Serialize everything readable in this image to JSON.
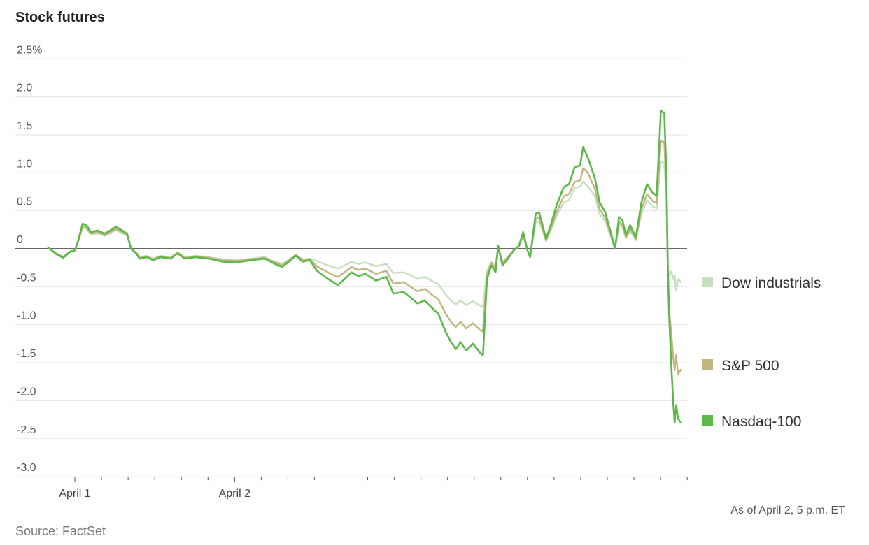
{
  "chart_data": {
    "type": "line",
    "title": "Stock futures",
    "ylim": [
      -3.0,
      2.5
    ],
    "yticks": [
      {
        "value": 2.5,
        "label": "2.5%"
      },
      {
        "value": 2.0,
        "label": "2.0"
      },
      {
        "value": 1.5,
        "label": "1.5"
      },
      {
        "value": 1.0,
        "label": "1.0"
      },
      {
        "value": 0.5,
        "label": "0.5"
      },
      {
        "value": 0,
        "label": "0"
      },
      {
        "value": -0.5,
        "label": "-0.5"
      },
      {
        "value": -1.0,
        "label": "-1.0"
      },
      {
        "value": -1.5,
        "label": "-1.5"
      },
      {
        "value": -2.0,
        "label": "-2.0"
      },
      {
        "value": -2.5,
        "label": "-2.5"
      },
      {
        "value": -3.0,
        "label": "-3.0"
      }
    ],
    "xtick_count": 24,
    "xtick_labels": [
      {
        "tick": 0,
        "label": "April 1"
      },
      {
        "tick": 6,
        "label": "April 2"
      }
    ],
    "grid": true,
    "legend_placement": "right, at line ends",
    "x": [
      -1.02,
      -0.7,
      -0.44,
      -0.18,
      0,
      0.13,
      0.29,
      0.44,
      0.6,
      0.86,
      1.12,
      1.33,
      1.54,
      1.78,
      1.96,
      2.11,
      2.3,
      2.43,
      2.69,
      2.95,
      3.21,
      3.6,
      3.86,
      4.13,
      4.52,
      5.04,
      5.56,
      6.08,
      6.61,
      7.13,
      7.52,
      7.78,
      8.04,
      8.3,
      8.56,
      8.83,
      9.09,
      9.35,
      9.61,
      9.87,
      10.13,
      10.39,
      10.65,
      10.91,
      11.31,
      11.7,
      11.96,
      12.35,
      12.61,
      12.87,
      13.13,
      13.39,
      13.66,
      13.92,
      14.13,
      14.31,
      14.49,
      14.7,
      14.96,
      15.22,
      15.33,
      15.48,
      15.64,
      15.8,
      15.9,
      16.06,
      16.27,
      16.48,
      16.68,
      16.84,
      17.0,
      17.1,
      17.31,
      17.44,
      17.7,
      17.89,
      18.09,
      18.36,
      18.56,
      18.77,
      18.98,
      19.09,
      19.27,
      19.53,
      19.71,
      19.92,
      20.18,
      20.29,
      20.44,
      20.57,
      20.7,
      20.86,
      21.07,
      21.28,
      21.49,
      21.7,
      21.85,
      21.96,
      22.01,
      22.14,
      22.22,
      22.27,
      22.32,
      22.4,
      22.48,
      22.53,
      22.58,
      22.66,
      22.79
    ],
    "series": [
      {
        "name": "Dow industrials",
        "color": "#c6dfbf",
        "values": [
          0.02,
          -0.06,
          -0.1,
          -0.03,
          -0.02,
          0.09,
          0.28,
          0.26,
          0.19,
          0.2,
          0.17,
          0.2,
          0.25,
          0.2,
          0.17,
          0,
          -0.05,
          -0.11,
          -0.09,
          -0.13,
          -0.09,
          -0.11,
          -0.05,
          -0.11,
          -0.09,
          -0.11,
          -0.14,
          -0.15,
          -0.13,
          -0.11,
          -0.17,
          -0.2,
          -0.14,
          -0.08,
          -0.14,
          -0.13,
          -0.16,
          -0.2,
          -0.23,
          -0.26,
          -0.22,
          -0.17,
          -0.2,
          -0.18,
          -0.23,
          -0.2,
          -0.32,
          -0.31,
          -0.35,
          -0.4,
          -0.37,
          -0.42,
          -0.47,
          -0.6,
          -0.68,
          -0.73,
          -0.68,
          -0.74,
          -0.69,
          -0.75,
          -0.77,
          -0.3,
          -0.17,
          -0.23,
          0.03,
          -0.17,
          -0.1,
          -0.02,
          0.03,
          0.17,
          -0.02,
          -0.08,
          0.35,
          0.36,
          0.1,
          0.25,
          0.43,
          0.61,
          0.64,
          0.8,
          0.82,
          0.88,
          0.82,
          0.7,
          0.46,
          0.36,
          0.11,
          0,
          0.32,
          0.28,
          0.14,
          0.23,
          0.11,
          0.46,
          0.64,
          0.56,
          0.53,
          0.95,
          1.15,
          1.12,
          0.65,
          -0.3,
          -0.35,
          -0.3,
          -0.4,
          -0.35,
          -0.55,
          -0.4,
          -0.45
        ]
      },
      {
        "name": "S&P 500",
        "color": "#c2b57f",
        "values": [
          0.02,
          -0.06,
          -0.11,
          -0.04,
          -0.02,
          0.1,
          0.3,
          0.28,
          0.2,
          0.22,
          0.18,
          0.22,
          0.26,
          0.22,
          0.18,
          0,
          -0.05,
          -0.12,
          -0.1,
          -0.14,
          -0.1,
          -0.12,
          -0.05,
          -0.12,
          -0.1,
          -0.12,
          -0.15,
          -0.16,
          -0.14,
          -0.12,
          -0.18,
          -0.22,
          -0.15,
          -0.08,
          -0.15,
          -0.14,
          -0.23,
          -0.28,
          -0.33,
          -0.37,
          -0.31,
          -0.24,
          -0.28,
          -0.26,
          -0.33,
          -0.29,
          -0.46,
          -0.44,
          -0.5,
          -0.56,
          -0.53,
          -0.6,
          -0.67,
          -0.85,
          -0.96,
          -1.03,
          -0.96,
          -1.05,
          -0.98,
          -1.07,
          -1.09,
          -0.34,
          -0.19,
          -0.26,
          0.03,
          -0.19,
          -0.11,
          -0.02,
          0.03,
          0.19,
          -0.02,
          -0.09,
          0.39,
          0.41,
          0.11,
          0.28,
          0.48,
          0.69,
          0.72,
          0.88,
          0.9,
          1.06,
          1.0,
          0.79,
          0.52,
          0.41,
          0.13,
          0,
          0.36,
          0.31,
          0.15,
          0.26,
          0.13,
          0.52,
          0.72,
          0.63,
          0.6,
          1.15,
          1.42,
          1.4,
          0.78,
          -0.3,
          -0.8,
          -1.1,
          -1.45,
          -1.6,
          -1.4,
          -1.65,
          -1.58
        ]
      },
      {
        "name": "Nasdaq-100",
        "color": "#5cb84a",
        "values": [
          0.02,
          -0.07,
          -0.12,
          -0.04,
          -0.02,
          0.11,
          0.33,
          0.31,
          0.22,
          0.24,
          0.2,
          0.24,
          0.29,
          0.24,
          0.2,
          0,
          -0.06,
          -0.13,
          -0.11,
          -0.15,
          -0.11,
          -0.13,
          -0.06,
          -0.13,
          -0.11,
          -0.13,
          -0.17,
          -0.18,
          -0.15,
          -0.13,
          -0.2,
          -0.24,
          -0.17,
          -0.09,
          -0.17,
          -0.15,
          -0.29,
          -0.36,
          -0.42,
          -0.48,
          -0.4,
          -0.31,
          -0.36,
          -0.33,
          -0.42,
          -0.37,
          -0.59,
          -0.57,
          -0.64,
          -0.72,
          -0.68,
          -0.77,
          -0.86,
          -1.09,
          -1.23,
          -1.32,
          -1.23,
          -1.34,
          -1.25,
          -1.37,
          -1.4,
          -0.4,
          -0.22,
          -0.31,
          0.04,
          -0.22,
          -0.13,
          -0.02,
          0.04,
          0.22,
          -0.02,
          -0.11,
          0.46,
          0.48,
          0.13,
          0.33,
          0.57,
          0.81,
          0.85,
          1.07,
          1.1,
          1.34,
          1.2,
          0.93,
          0.61,
          0.48,
          0.15,
          0,
          0.42,
          0.37,
          0.18,
          0.31,
          0.15,
          0.61,
          0.85,
          0.74,
          0.7,
          1.44,
          1.82,
          1.78,
          0.98,
          -0.22,
          -0.86,
          -1.51,
          -2.06,
          -2.29,
          -2.06,
          -2.24,
          -2.3
        ]
      }
    ]
  },
  "footer": {
    "as_of": "As of April 2, 5 p.m. ET",
    "source": "Source: FactSet"
  }
}
